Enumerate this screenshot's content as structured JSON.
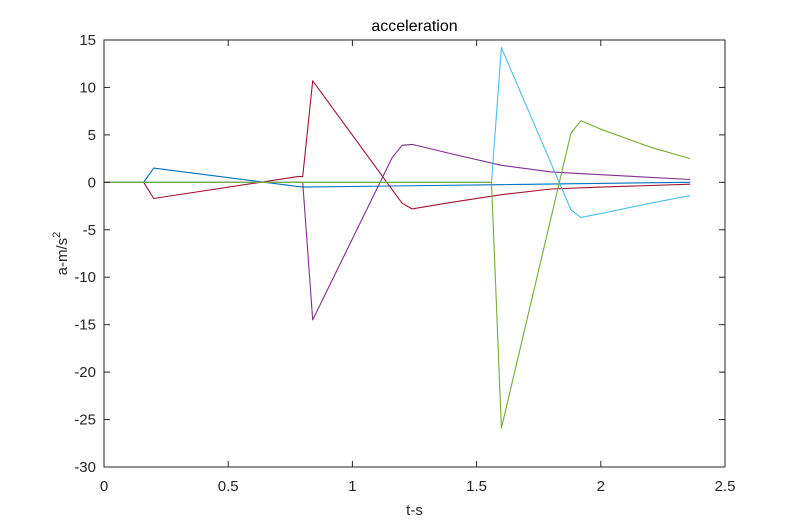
{
  "chart_data": {
    "type": "line",
    "title": "acceleration",
    "xlabel": "t-s",
    "ylabel_base": "a-m/s",
    "ylabel_sup": "2",
    "xlim": [
      0,
      2.5
    ],
    "ylim": [
      -30,
      15
    ],
    "xticks": [
      0,
      0.5,
      1,
      1.5,
      2,
      2.5
    ],
    "xtick_labels": [
      "0",
      "0.5",
      "1",
      "1.5",
      "2",
      "2.5"
    ],
    "yticks": [
      15,
      10,
      5,
      0,
      -5,
      -10,
      -15,
      -20,
      -25,
      -30
    ],
    "ytick_labels": [
      "15",
      "10",
      "5",
      "0",
      "-5",
      "-10",
      "-15",
      "-20",
      "-25",
      "-30"
    ],
    "grid": false,
    "series": [
      {
        "color": "#0072BD",
        "x": [
          0,
          0.16,
          0.2,
          0.8,
          2.36
        ],
        "y": [
          0,
          0,
          1.5,
          -0.5,
          0
        ]
      },
      {
        "color": "#A2142F",
        "x": [
          0,
          0.16,
          0.2,
          0.78,
          0.8,
          0.84,
          1.2,
          1.24,
          1.4,
          1.6,
          1.8,
          2.0,
          2.36
        ],
        "y": [
          0,
          0,
          -1.7,
          0.6,
          0.6,
          10.7,
          -2.2,
          -2.8,
          -2.1,
          -1.3,
          -0.7,
          -0.5,
          -0.2
        ]
      },
      {
        "color": "#7E2F8E",
        "x": [
          0,
          0.8,
          0.84,
          1.16,
          1.2,
          1.24,
          1.4,
          1.6,
          1.8,
          2.0,
          2.36
        ],
        "y": [
          0,
          0,
          -14.5,
          2.6,
          3.9,
          4.0,
          3.0,
          1.8,
          1.1,
          0.8,
          0.3
        ]
      },
      {
        "color": "#4DBEEE",
        "x": [
          0,
          1.56,
          1.6,
          1.88,
          1.92,
          2.0,
          2.2,
          2.36
        ],
        "y": [
          0,
          0,
          14.2,
          -2.9,
          -3.7,
          -3.3,
          -2.2,
          -1.4
        ]
      },
      {
        "color": "#77AC30",
        "x": [
          0,
          1.56,
          1.6,
          1.88,
          1.92,
          2.0,
          2.2,
          2.36
        ],
        "y": [
          0,
          0,
          -25.9,
          5.2,
          6.5,
          5.6,
          3.7,
          2.5
        ]
      }
    ]
  }
}
